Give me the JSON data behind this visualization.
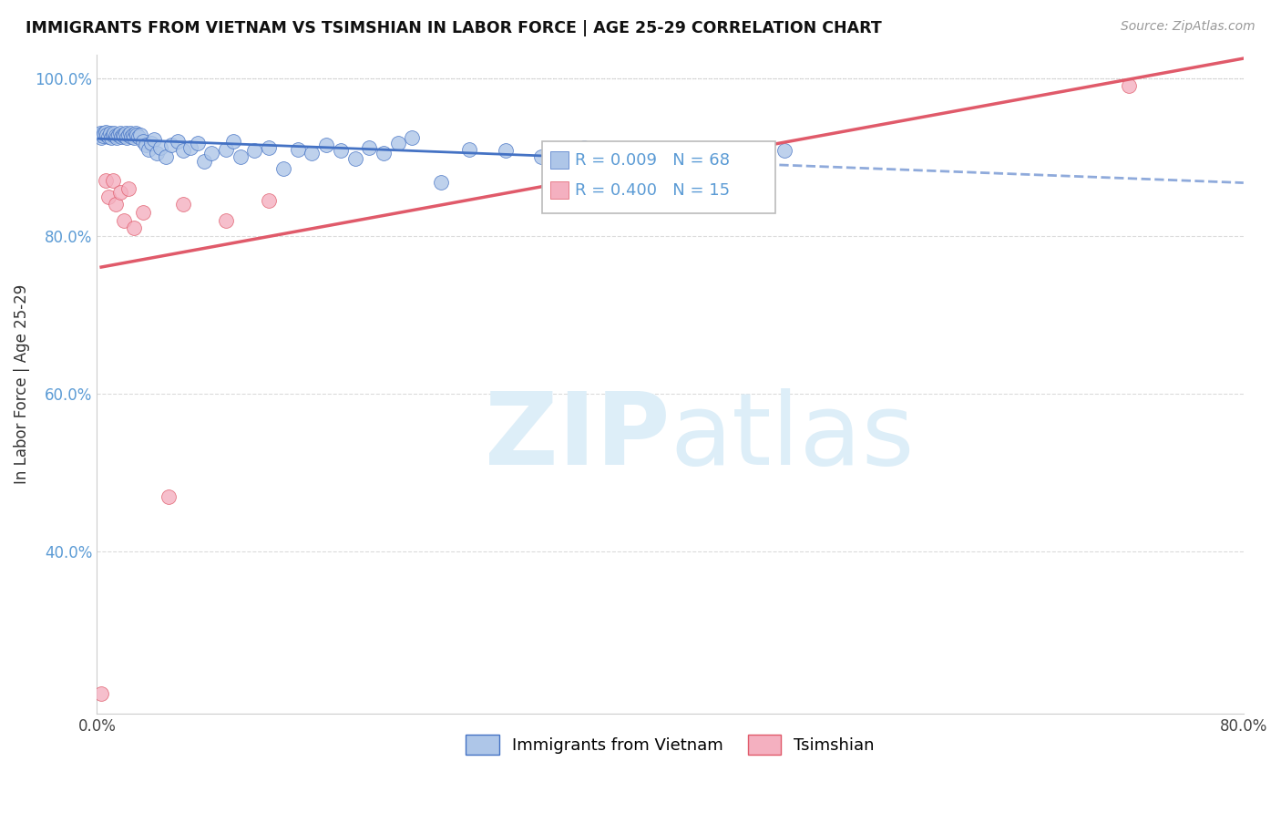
{
  "title": "IMMIGRANTS FROM VIETNAM VS TSIMSHIAN IN LABOR FORCE | AGE 25-29 CORRELATION CHART",
  "source": "Source: ZipAtlas.com",
  "ylabel": "In Labor Force | Age 25-29",
  "xlim": [
    0.0,
    0.8
  ],
  "ylim": [
    0.195,
    1.03
  ],
  "xticks": [
    0.0,
    0.1,
    0.2,
    0.3,
    0.4,
    0.5,
    0.6,
    0.7,
    0.8
  ],
  "yticks": [
    0.4,
    0.6,
    0.8,
    1.0
  ],
  "xtick_labels": [
    "0.0%",
    "",
    "",
    "",
    "",
    "",
    "",
    "",
    "80.0%"
  ],
  "ytick_labels": [
    "40.0%",
    "60.0%",
    "80.0%",
    "100.0%"
  ],
  "legend_labels": [
    "Immigrants from Vietnam",
    "Tsimshian"
  ],
  "R_vietnam": 0.009,
  "N_vietnam": 68,
  "R_tsimshian": 0.4,
  "N_tsimshian": 15,
  "vietnam_x": [
    0.001,
    0.002,
    0.003,
    0.004,
    0.005,
    0.006,
    0.007,
    0.008,
    0.009,
    0.01,
    0.011,
    0.012,
    0.013,
    0.014,
    0.015,
    0.016,
    0.017,
    0.018,
    0.019,
    0.02,
    0.021,
    0.022,
    0.023,
    0.024,
    0.025,
    0.026,
    0.027,
    0.028,
    0.029,
    0.03,
    0.032,
    0.034,
    0.036,
    0.038,
    0.04,
    0.042,
    0.044,
    0.048,
    0.052,
    0.056,
    0.06,
    0.065,
    0.07,
    0.075,
    0.08,
    0.09,
    0.095,
    0.1,
    0.11,
    0.12,
    0.13,
    0.14,
    0.15,
    0.16,
    0.17,
    0.18,
    0.19,
    0.2,
    0.21,
    0.22,
    0.24,
    0.26,
    0.285,
    0.31,
    0.34,
    0.38,
    0.42,
    0.48
  ],
  "vietnam_y": [
    0.928,
    0.93,
    0.925,
    0.927,
    0.93,
    0.932,
    0.928,
    0.926,
    0.93,
    0.925,
    0.928,
    0.93,
    0.927,
    0.925,
    0.928,
    0.93,
    0.926,
    0.928,
    0.927,
    0.93,
    0.925,
    0.928,
    0.93,
    0.926,
    0.928,
    0.925,
    0.93,
    0.928,
    0.926,
    0.928,
    0.92,
    0.915,
    0.91,
    0.918,
    0.922,
    0.905,
    0.912,
    0.9,
    0.915,
    0.92,
    0.908,
    0.912,
    0.918,
    0.895,
    0.905,
    0.91,
    0.92,
    0.9,
    0.908,
    0.912,
    0.885,
    0.91,
    0.905,
    0.915,
    0.908,
    0.898,
    0.912,
    0.905,
    0.918,
    0.925,
    0.868,
    0.91,
    0.908,
    0.9,
    0.912,
    0.905,
    0.895,
    0.908
  ],
  "tsimshian_x": [
    0.003,
    0.006,
    0.008,
    0.011,
    0.013,
    0.016,
    0.019,
    0.022,
    0.026,
    0.032,
    0.05,
    0.06,
    0.09,
    0.12,
    0.72
  ],
  "tsimshian_y": [
    0.22,
    0.87,
    0.85,
    0.87,
    0.84,
    0.855,
    0.82,
    0.86,
    0.81,
    0.83,
    0.47,
    0.84,
    0.82,
    0.845,
    0.99
  ],
  "vietnam_line_color": "#4472c4",
  "tsimshian_line_color": "#e05a6a",
  "dot_color_vietnam": "#aec6e8",
  "dot_color_tsimshian": "#f4b0c0",
  "dot_edge_vietnam": "#4472c4",
  "dot_edge_tsimshian": "#e05a6a",
  "background_color": "#ffffff",
  "grid_color": "#cccccc",
  "watermark_color": "#ddeef8"
}
